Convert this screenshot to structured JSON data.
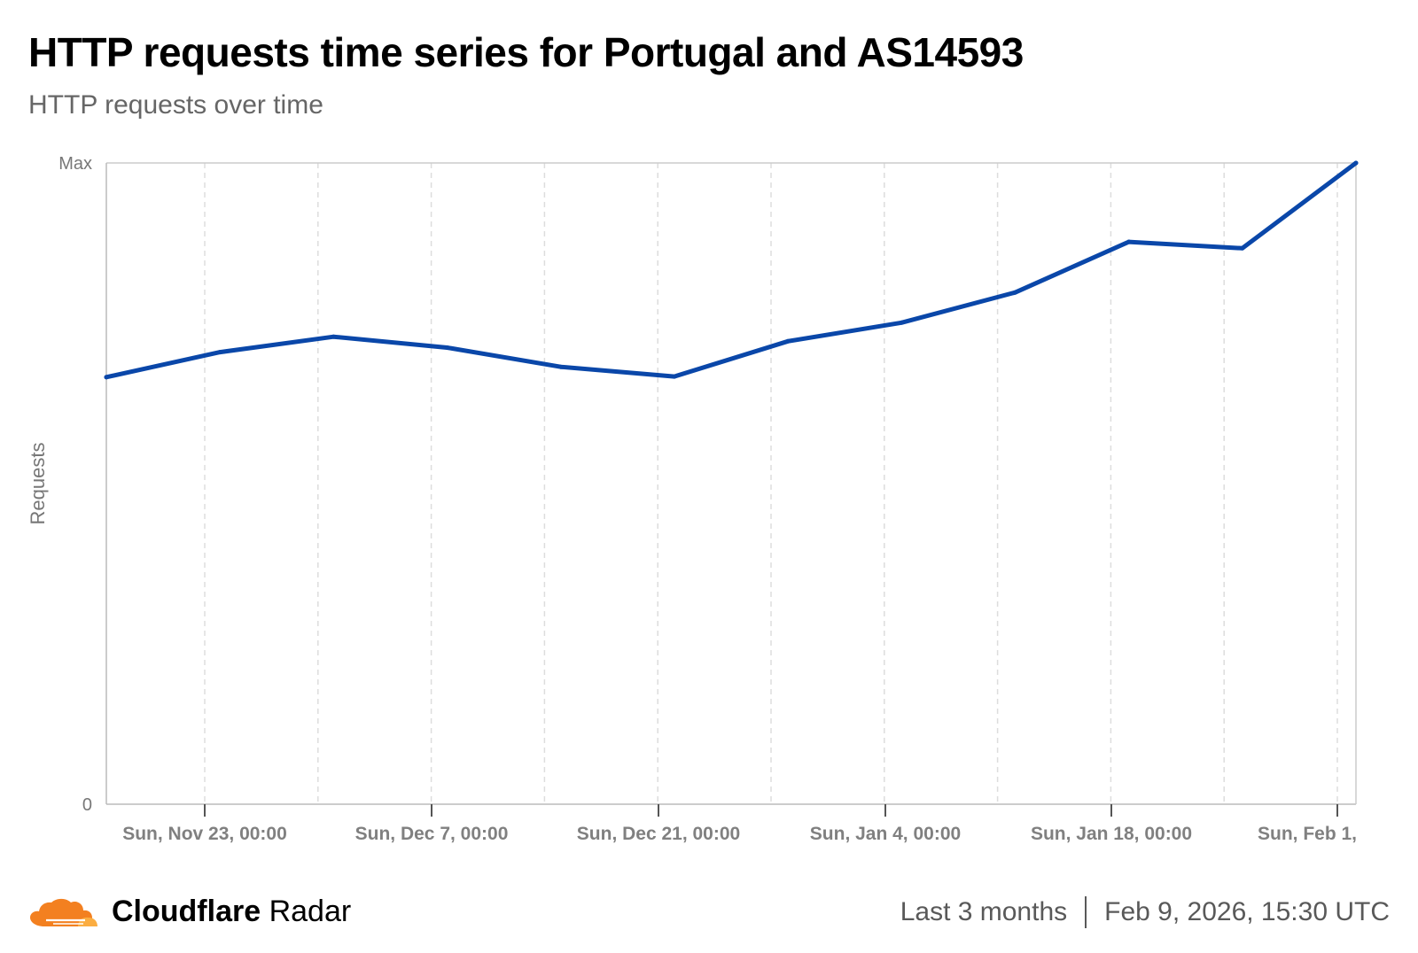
{
  "header": {
    "title": "HTTP requests time series for Portugal and AS14593",
    "subtitle": "HTTP requests over time"
  },
  "chart_data": {
    "type": "line",
    "title": "HTTP requests time series for Portugal and AS14593",
    "subtitle": "HTTP requests over time",
    "ylabel": "Requests",
    "xlabel": "",
    "y_tick_labels": [
      "0",
      "Max"
    ],
    "ylim": [
      0,
      100
    ],
    "x_tick_labels": [
      "Sun, Nov 23, 00:00",
      "Sun, Dec 7, 00:00",
      "Sun, Dec 21, 00:00",
      "Sun, Jan 4, 00:00",
      "Sun, Jan 18, 00:00",
      "Sun, Feb 1,"
    ],
    "grid": "vertical dashed",
    "series": [
      {
        "name": "HTTP requests",
        "color": "#0a47a9",
        "x": [
          "Nov 16",
          "Nov 23",
          "Nov 30",
          "Dec 7",
          "Dec 14",
          "Dec 21",
          "Dec 28",
          "Jan 4",
          "Jan 11",
          "Jan 18",
          "Jan 25",
          "Feb 1"
        ],
        "values": [
          66.6,
          70.5,
          72.9,
          71.2,
          68.2,
          66.7,
          72.2,
          75.1,
          79.8,
          87.7,
          86.7,
          100
        ]
      }
    ]
  },
  "footer": {
    "brand_bold": "Cloudflare",
    "brand_regular": "Radar",
    "range": "Last 3 months",
    "timestamp": "Feb 9, 2026, 15:30 UTC"
  }
}
